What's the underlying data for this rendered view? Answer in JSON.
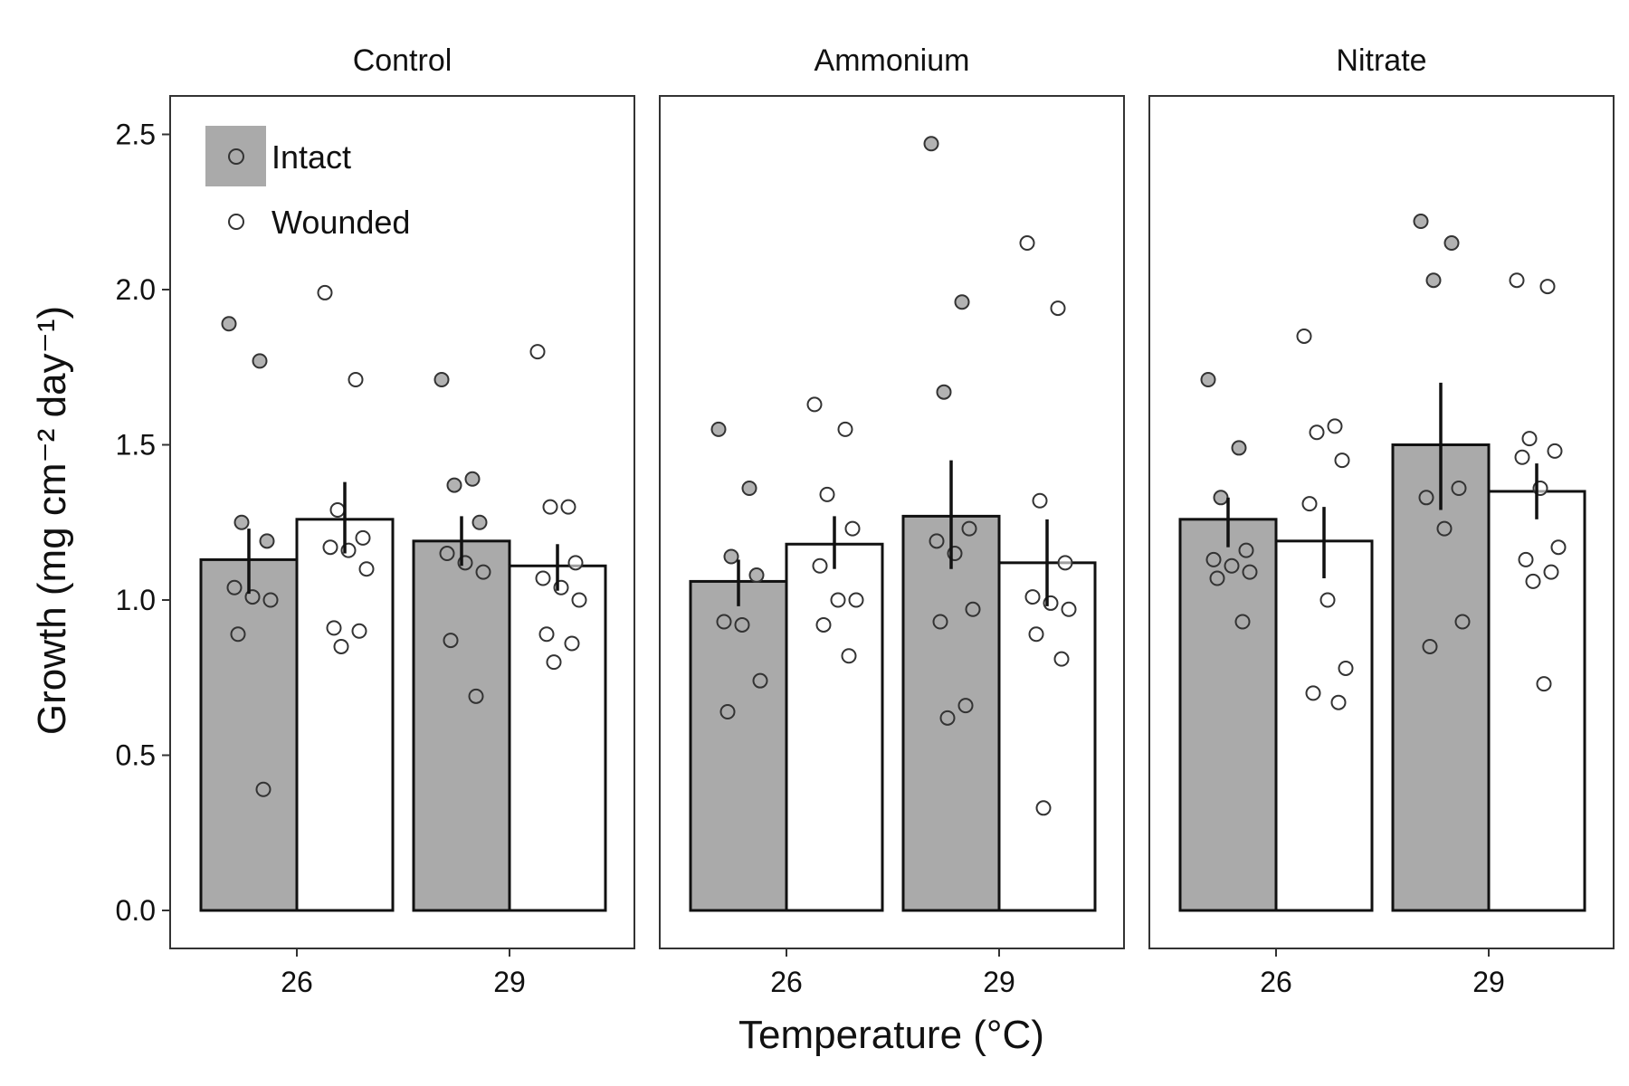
{
  "colors": {
    "intact_fill": "#aaaaaa",
    "wounded_fill": "#ffffff",
    "bar_stroke": "#111111",
    "point_stroke": "#333333",
    "panel_border": "#333333"
  },
  "chart_data": {
    "type": "bar",
    "xlabel": "Temperature (°C)",
    "ylabel": "Growth (mg cm⁻² day⁻¹)",
    "ylim": [
      0,
      2.5
    ],
    "yticks": [
      "0.0",
      "0.5",
      "1.0",
      "1.5",
      "2.0",
      "2.5"
    ],
    "categories": [
      "26",
      "29"
    ],
    "grid": false,
    "legend_position": "top-left",
    "legend": [
      {
        "name": "Intact",
        "fill": "#aaaaaa"
      },
      {
        "name": "Wounded",
        "fill": "#ffffff"
      }
    ],
    "panels": [
      {
        "title": "Control",
        "groups": [
          {
            "temperature": "26",
            "bars": [
              {
                "series": "Intact",
                "mean": 1.13,
                "se": [
                  1.02,
                  1.23
                ],
                "points": [
                  1.89,
                  1.77,
                  1.25,
                  1.19,
                  1.04,
                  1.01,
                  1.0,
                  0.89,
                  0.39
                ]
              },
              {
                "series": "Wounded",
                "mean": 1.26,
                "se": [
                  1.15,
                  1.38
                ],
                "points": [
                  1.99,
                  1.71,
                  1.29,
                  1.2,
                  1.17,
                  1.16,
                  1.1,
                  0.91,
                  0.9,
                  0.85
                ]
              }
            ]
          },
          {
            "temperature": "29",
            "bars": [
              {
                "series": "Intact",
                "mean": 1.19,
                "se": [
                  1.11,
                  1.27
                ],
                "points": [
                  1.71,
                  1.39,
                  1.37,
                  1.25,
                  1.15,
                  1.12,
                  1.09,
                  0.87,
                  0.69
                ]
              },
              {
                "series": "Wounded",
                "mean": 1.11,
                "se": [
                  1.03,
                  1.18
                ],
                "points": [
                  1.8,
                  1.3,
                  1.3,
                  1.12,
                  1.07,
                  1.04,
                  1.0,
                  0.89,
                  0.86,
                  0.8
                ]
              }
            ]
          }
        ]
      },
      {
        "title": "Ammonium",
        "groups": [
          {
            "temperature": "26",
            "bars": [
              {
                "series": "Intact",
                "mean": 1.06,
                "se": [
                  0.98,
                  1.13
                ],
                "points": [
                  1.55,
                  1.36,
                  1.14,
                  1.08,
                  0.93,
                  0.92,
                  0.74,
                  0.64
                ]
              },
              {
                "series": "Wounded",
                "mean": 1.18,
                "se": [
                  1.1,
                  1.27
                ],
                "points": [
                  1.63,
                  1.55,
                  1.34,
                  1.23,
                  1.11,
                  1.0,
                  1.0,
                  0.92,
                  0.82
                ]
              }
            ]
          },
          {
            "temperature": "29",
            "bars": [
              {
                "series": "Intact",
                "mean": 1.27,
                "se": [
                  1.1,
                  1.45
                ],
                "points": [
                  2.47,
                  1.96,
                  1.67,
                  1.23,
                  1.19,
                  1.15,
                  0.97,
                  0.93,
                  0.66,
                  0.62
                ]
              },
              {
                "series": "Wounded",
                "mean": 1.12,
                "se": [
                  0.98,
                  1.26
                ],
                "points": [
                  2.15,
                  1.94,
                  1.32,
                  1.12,
                  1.01,
                  0.99,
                  0.97,
                  0.89,
                  0.81,
                  0.33
                ]
              }
            ]
          }
        ]
      },
      {
        "title": "Nitrate",
        "groups": [
          {
            "temperature": "26",
            "bars": [
              {
                "series": "Intact",
                "mean": 1.26,
                "se": [
                  1.17,
                  1.33
                ],
                "points": [
                  1.71,
                  1.49,
                  1.33,
                  1.16,
                  1.13,
                  1.11,
                  1.09,
                  1.07,
                  0.93
                ]
              },
              {
                "series": "Wounded",
                "mean": 1.19,
                "se": [
                  1.07,
                  1.3
                ],
                "points": [
                  1.85,
                  1.56,
                  1.54,
                  1.45,
                  1.31,
                  1.0,
                  0.78,
                  0.7,
                  0.67
                ]
              }
            ]
          },
          {
            "temperature": "29",
            "bars": [
              {
                "series": "Intact",
                "mean": 1.5,
                "se": [
                  1.29,
                  1.7
                ],
                "points": [
                  2.22,
                  2.15,
                  2.03,
                  1.36,
                  1.33,
                  1.23,
                  0.93,
                  0.85
                ]
              },
              {
                "series": "Wounded",
                "mean": 1.35,
                "se": [
                  1.26,
                  1.44
                ],
                "points": [
                  2.03,
                  2.01,
                  1.52,
                  1.48,
                  1.46,
                  1.36,
                  1.17,
                  1.13,
                  1.09,
                  1.06,
                  0.73
                ]
              }
            ]
          }
        ]
      }
    ]
  }
}
